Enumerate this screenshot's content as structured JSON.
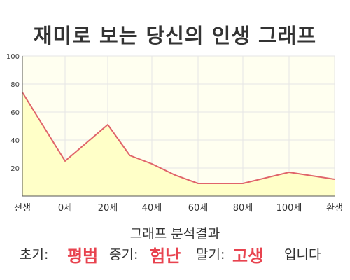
{
  "title": "재미로 보는 당신의 인생 그래프",
  "summary": {
    "heading": "그래프 분석결과",
    "early_label": "초기:",
    "early_value": "평범",
    "middle_label": "중기:",
    "middle_value": "험난",
    "late_label": "말기:",
    "late_value": "고생",
    "ending": "입니다"
  },
  "colors": {
    "line": "#e0646a",
    "fill": "#ffffc8",
    "plot_bg": "#fffff0",
    "grid": "#e6e6e6",
    "highlight": "#e8434f"
  },
  "chart_data": {
    "type": "area",
    "categories": [
      "전생",
      "0세",
      "20세",
      "40세",
      "60세",
      "80세",
      "100세",
      "환생"
    ],
    "x": [
      -1,
      0,
      20,
      30,
      40,
      50,
      60,
      80,
      100,
      120
    ],
    "y": [
      74,
      25,
      51,
      29,
      23,
      15,
      9,
      9,
      17,
      12
    ],
    "ylim": [
      0,
      100
    ],
    "yticks": [
      20,
      40,
      60,
      80,
      100
    ],
    "xlabel": "",
    "ylabel": "",
    "grid": true
  }
}
